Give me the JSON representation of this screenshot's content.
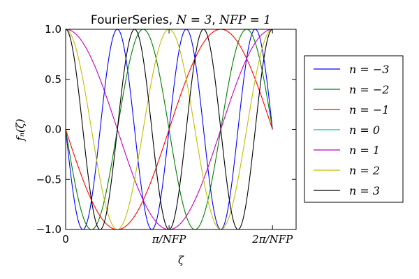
{
  "chart_data": {
    "type": "line",
    "title": {
      "prefix": "FourierSeries, ",
      "part1": "N = 3",
      "part2": "NFP = 1"
    },
    "xlabel": "ζ",
    "ylabel": "fₙ(ζ)",
    "xlim": [
      0,
      7.0
    ],
    "ylim": [
      -1.0,
      1.0
    ],
    "x_ticks": [
      {
        "value": 0,
        "label": "0"
      },
      {
        "value": 3.14159,
        "label": "π/NFP"
      },
      {
        "value": 6.28318,
        "label": "2π/NFP"
      }
    ],
    "y_ticks": [
      {
        "value": 1.0,
        "label": "1.0"
      },
      {
        "value": 0.5,
        "label": "0.5"
      },
      {
        "value": 0.0,
        "label": "0.0"
      },
      {
        "value": -0.5,
        "label": "−0.5"
      },
      {
        "value": -1.0,
        "label": "−1.0"
      }
    ],
    "x_domain": [
      0,
      6.28318
    ],
    "grid": false,
    "legend_position": "right-outside",
    "series": [
      {
        "name": "n = −3",
        "n": -3,
        "func": "sin",
        "color": "#0000ff"
      },
      {
        "name": "n = −2",
        "n": -2,
        "func": "sin",
        "color": "#007f00"
      },
      {
        "name": "n = −1",
        "n": -1,
        "func": "sin",
        "color": "#ff0000"
      },
      {
        "name": "n = 0",
        "n": 0,
        "func": "cos",
        "color": "#00bfbf"
      },
      {
        "name": "n = 1",
        "n": 1,
        "func": "cos",
        "color": "#bf00bf"
      },
      {
        "name": "n = 2",
        "n": 2,
        "func": "cos",
        "color": "#bfbf00"
      },
      {
        "name": "n = 3",
        "n": 3,
        "func": "cos",
        "color": "#000000"
      }
    ]
  }
}
